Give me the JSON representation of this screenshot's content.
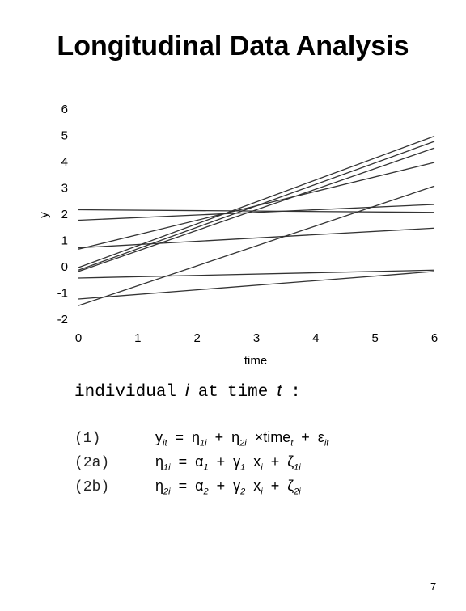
{
  "title": "Longitudinal Data Analysis",
  "chart_data": {
    "type": "line",
    "xlabel": "time",
    "ylabel": "y",
    "x": [
      0,
      6
    ],
    "series": [
      {
        "color": "#333333",
        "values": [
          2.2,
          2.1
        ]
      },
      {
        "color": "#333333",
        "values": [
          1.8,
          2.4
        ]
      },
      {
        "color": "#333333",
        "values": [
          0.7,
          4.0
        ]
      },
      {
        "color": "#333333",
        "values": [
          0.75,
          1.5
        ]
      },
      {
        "color": "#333333",
        "values": [
          0.0,
          5.0
        ]
      },
      {
        "color": "#333333",
        "values": [
          -0.1,
          4.8
        ]
      },
      {
        "color": "#333333",
        "values": [
          -0.15,
          4.55
        ]
      },
      {
        "color": "#333333",
        "values": [
          -0.4,
          -0.1
        ]
      },
      {
        "color": "#333333",
        "values": [
          -1.2,
          -0.15
        ]
      },
      {
        "color": "#333333",
        "values": [
          -1.45,
          3.1
        ]
      }
    ],
    "xlim": [
      0,
      6
    ],
    "xticks": [
      0,
      1,
      2,
      3,
      4,
      5,
      6
    ],
    "ylim": [
      -2,
      6
    ],
    "yticks": [
      -2,
      -1,
      0,
      1,
      2,
      3,
      4,
      5,
      6
    ]
  },
  "intro": [
    {
      "text": "individual",
      "italic": false
    },
    {
      "text": "i",
      "italic": true
    },
    {
      "text": "at",
      "italic": false
    },
    {
      "text": "time",
      "italic": false
    },
    {
      "text": "t",
      "italic": true
    },
    {
      "text": ":",
      "italic": false
    }
  ],
  "equations": [
    {
      "label": "(1)",
      "terms": [
        {
          "base": "y",
          "sub": "it"
        },
        "=",
        {
          "base": "η",
          "sub": "1i"
        },
        "+",
        {
          "base": "η",
          "sub": "2i"
        },
        {
          "base": "×time",
          "sub": "t"
        },
        "+",
        {
          "base": "ε",
          "sub": "it"
        }
      ]
    },
    {
      "label": "(2a)",
      "terms": [
        {
          "base": "η",
          "sub": "1i"
        },
        "=",
        {
          "base": "α",
          "sub": "1"
        },
        "+",
        {
          "base": "γ",
          "sub": "1"
        },
        {
          "base": "x",
          "sub": "i"
        },
        "+",
        {
          "base": "ζ",
          "sub": "1i"
        }
      ]
    },
    {
      "label": "(2b)",
      "terms": [
        {
          "base": "η",
          "sub": "2i"
        },
        "=",
        {
          "base": "α",
          "sub": "2"
        },
        "+",
        {
          "base": "γ",
          "sub": "2"
        },
        {
          "base": "x",
          "sub": "i"
        },
        "+",
        {
          "base": "ζ",
          "sub": "2i"
        }
      ]
    }
  ],
  "page_number": "7"
}
